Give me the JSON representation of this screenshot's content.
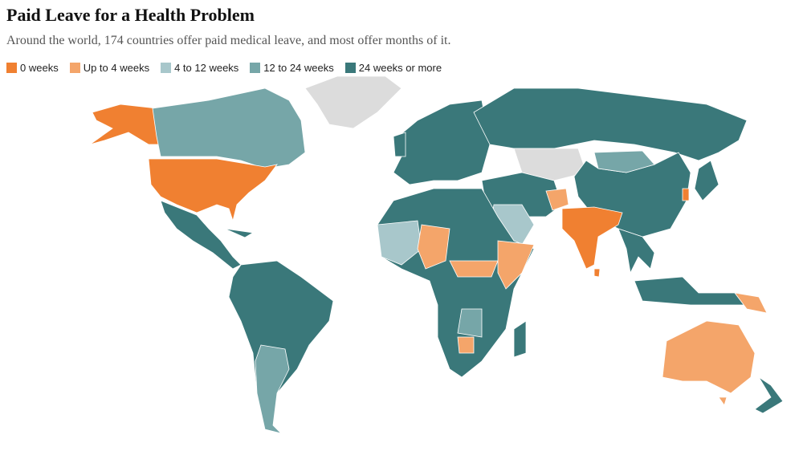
{
  "title": "Paid Leave for a Health Problem",
  "subtitle": "Around the world, 174 countries offer paid medical leave, and most offer months of it.",
  "legend": [
    {
      "label": "0 weeks",
      "color": "#f08031"
    },
    {
      "label": "Up to 4 weeks",
      "color": "#f4a56a"
    },
    {
      "label": "4 to 12 weeks",
      "color": "#a8c7cb"
    },
    {
      "label": "12 to 24 weeks",
      "color": "#76a6a8"
    },
    {
      "label": "24 weeks or more",
      "color": "#3a787a"
    }
  ]
}
